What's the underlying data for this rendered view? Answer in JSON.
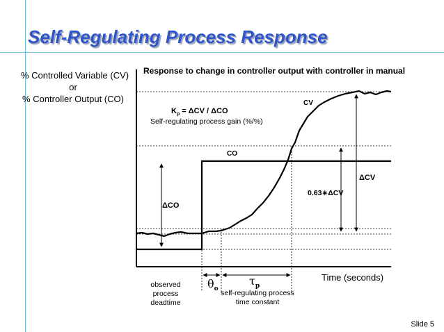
{
  "slide": {
    "title": "Self-Regulating Process Response",
    "number": "Slide 5"
  },
  "y_axis": {
    "line1": "% Controlled Variable (CV)",
    "line2": "or",
    "line3": "% Controller Output (CO)"
  },
  "diagram": {
    "subtitle": "Response to change in controller output with controller in manual",
    "gain_formula": {
      "k": "K",
      "k_sub": "p",
      "rest": " = ΔCV / ΔCO"
    },
    "gain_caption": "Self-regulating process gain (%/%)",
    "cv_label": "CV",
    "co_label": "CO",
    "delta_cv_label": "ΔCV",
    "partial_cv_label": "0.63∗ΔCV",
    "delta_co_label": "ΔCO",
    "x_axis_label": "Time (seconds)",
    "theta": {
      "symbol": "θ",
      "sub": "o"
    },
    "tau": {
      "symbol": "τ",
      "sub": "p"
    },
    "deadtime_caption": [
      "observed",
      "process",
      "deadtime"
    ],
    "tau_caption": [
      "self-regulating process",
      "time constant"
    ]
  },
  "colors": {
    "title": "#2f55c9",
    "title_shadow": "#9aa3b5",
    "rule": "#6cc3dd",
    "lines": "#000000"
  }
}
